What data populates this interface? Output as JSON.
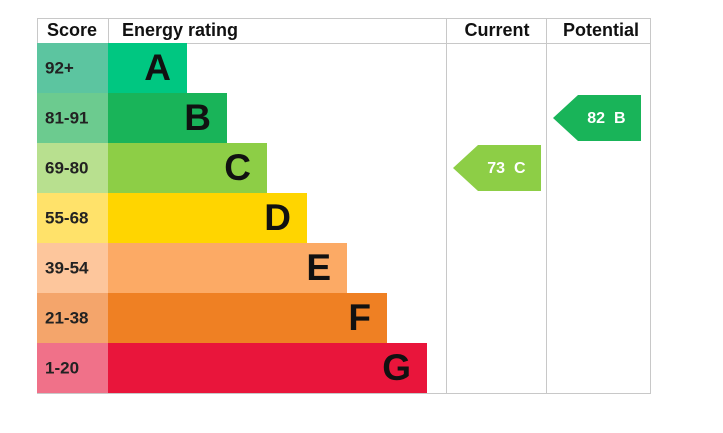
{
  "header": {
    "score": "Score",
    "rating": "Energy rating",
    "current": "Current",
    "potential": "Potential"
  },
  "bands": [
    {
      "score": "92+",
      "letter": "A",
      "color": "#00c781",
      "light": "#5cc5a0"
    },
    {
      "score": "81-91",
      "letter": "B",
      "color": "#19b459",
      "light": "#6ccb8f"
    },
    {
      "score": "69-80",
      "letter": "C",
      "color": "#8dce46",
      "light": "#b8e08f"
    },
    {
      "score": "55-68",
      "letter": "D",
      "color": "#ffd500",
      "light": "#ffe26a"
    },
    {
      "score": "39-54",
      "letter": "E",
      "color": "#fcaa65",
      "light": "#fdc69c"
    },
    {
      "score": "21-38",
      "letter": "F",
      "color": "#ef8023",
      "light": "#f4a56b"
    },
    {
      "score": "1-20",
      "letter": "G",
      "color": "#e9153b",
      "light": "#f07189"
    }
  ],
  "current": {
    "score": 73,
    "letter": "C"
  },
  "potential": {
    "score": 82,
    "letter": "B"
  }
}
